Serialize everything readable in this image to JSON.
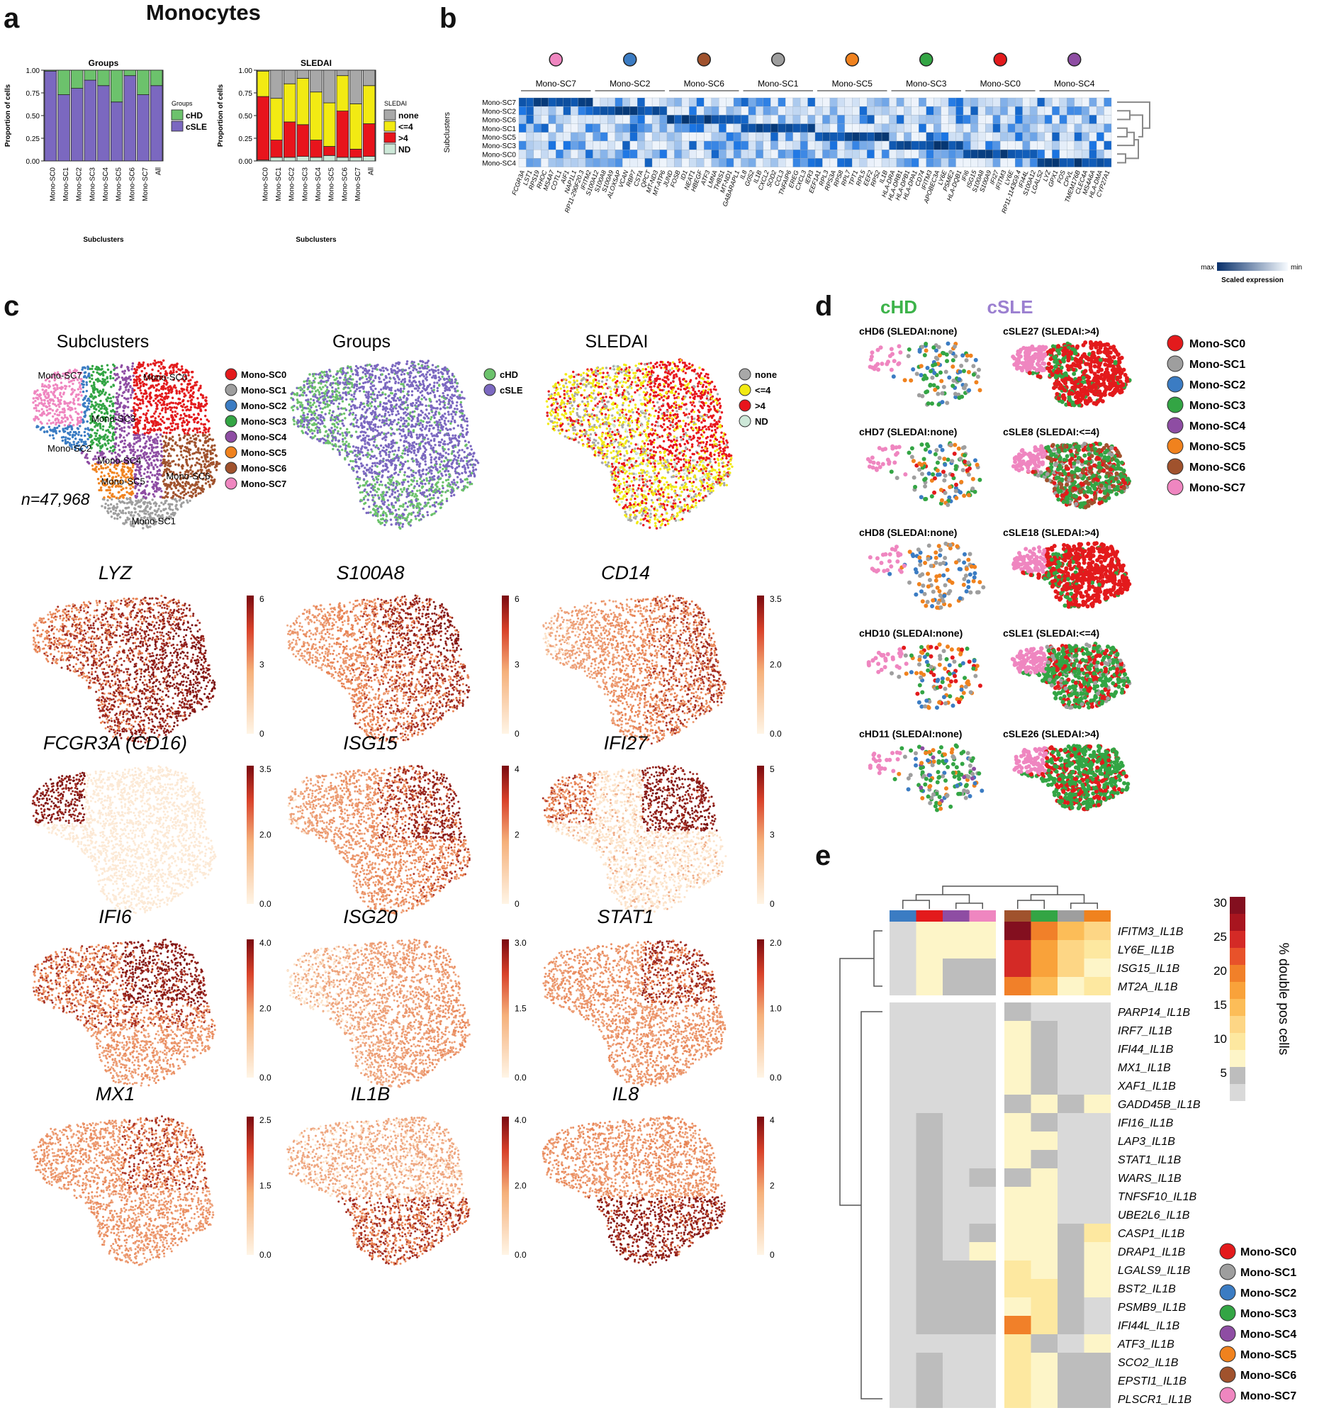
{
  "figure_title": "Monocytes",
  "panels": {
    "a": "a",
    "b": "b",
    "c": "c",
    "d": "d",
    "e": "e"
  },
  "colors": {
    "SC0": "#e31a1c",
    "SC1": "#9e9e9e",
    "SC2": "#3b7cc3",
    "SC3": "#33a544",
    "SC4": "#8e4da3",
    "SC5": "#f0821e",
    "SC6": "#a0522d",
    "SC7": "#ef86c0",
    "cHD": "#6cc26c",
    "cSLE": "#7b68c0",
    "none": "#a8a8a8",
    "le4": "#f2ea13",
    "gt4": "#e8141c",
    "ND": "#cde8d8"
  },
  "chart_data": [
    {
      "type": "bar",
      "id": "groups",
      "title": "Groups",
      "xlabel": "Subclusters",
      "ylabel": "Proportion of cells",
      "ylim": [
        0,
        1
      ],
      "yticks": [
        "0.00",
        "0.25",
        "0.50",
        "0.75",
        "1.00"
      ],
      "categories": [
        "Mono-SC0",
        "Mono-SC1",
        "Mono-SC2",
        "Mono-SC3",
        "Mono-SC4",
        "Mono-SC5",
        "Mono-SC6",
        "Mono-SC7",
        "All"
      ],
      "legend_title": "Groups",
      "series": [
        {
          "name": "cSLE",
          "values": [
            0.99,
            0.73,
            0.8,
            0.89,
            0.83,
            0.65,
            0.94,
            0.73,
            0.83
          ]
        },
        {
          "name": "cHD",
          "values": [
            0.01,
            0.27,
            0.2,
            0.11,
            0.17,
            0.35,
            0.06,
            0.27,
            0.17
          ]
        }
      ]
    },
    {
      "type": "bar",
      "id": "sledai",
      "title": "SLEDAI",
      "xlabel": "Subclusters",
      "ylabel": "Proportion of cells",
      "ylim": [
        0,
        1
      ],
      "yticks": [
        "0.00",
        "0.25",
        "0.50",
        "0.75",
        "1.00"
      ],
      "categories": [
        "Mono-SC0",
        "Mono-SC1",
        "Mono-SC2",
        "Mono-SC3",
        "Mono-SC4",
        "Mono-SC5",
        "Mono-SC6",
        "Mono-SC7",
        "All"
      ],
      "legend_title": "SLEDAI",
      "series": [
        {
          "name": "ND",
          "values": [
            0.01,
            0.04,
            0.04,
            0.05,
            0.04,
            0.06,
            0.04,
            0.04,
            0.05
          ]
        },
        {
          "name": ">4",
          "values": [
            0.7,
            0.19,
            0.39,
            0.35,
            0.19,
            0.1,
            0.51,
            0.09,
            0.36
          ]
        },
        {
          "name": "<=4",
          "values": [
            0.28,
            0.46,
            0.42,
            0.51,
            0.53,
            0.48,
            0.39,
            0.5,
            0.42
          ]
        },
        {
          "name": "none",
          "values": [
            0.01,
            0.31,
            0.15,
            0.09,
            0.24,
            0.36,
            0.06,
            0.37,
            0.17
          ]
        }
      ]
    },
    {
      "type": "heatmap",
      "id": "marker-heatmap",
      "row_axis_label": "Subclusters",
      "rows": [
        "Mono-SC7",
        "Mono-SC2",
        "Mono-SC6",
        "Mono-SC1",
        "Mono-SC5",
        "Mono-SC3",
        "Mono-SC0",
        "Mono-SC4"
      ],
      "column_groups": [
        {
          "name": "Mono-SC7",
          "color_key": "SC7",
          "genes": [
            "FCGR3A",
            "LST1",
            "RPS19",
            "RHOC",
            "MS4A7",
            "COTL1",
            "AIF1",
            "NAP1L1",
            "RP11-290F20.3",
            "IFITM2"
          ]
        },
        {
          "name": "Mono-SC2",
          "color_key": "SC2",
          "genes": [
            "S100A12",
            "S100A8",
            "S100A9",
            "ALOX5AP",
            "VCAN",
            "RBP7",
            "CSTA",
            "QPCT",
            "MT-ND3",
            "MT-ATP6"
          ]
        },
        {
          "name": "Mono-SC6",
          "color_key": "SC6",
          "genes": [
            "JUND",
            "FOSB",
            "ID1",
            "NEAT1",
            "HBEGF",
            "ATF3",
            "LMNA",
            "THBS1",
            "MT-ND1",
            "GABARAPL1"
          ]
        },
        {
          "name": "Mono-SC1",
          "color_key": "SC1",
          "genes": [
            "IL8",
            "G0S2",
            "IL1B",
            "CXCL2",
            "SOD2",
            "CCL3",
            "TNFAIP6",
            "EREG",
            "CXCL3",
            "IER3"
          ]
        },
        {
          "name": "Mono-SC5",
          "color_key": "SC5",
          "genes": [
            "EEF1A1",
            "RPL3",
            "RPS3A",
            "RPS8",
            "RPL7",
            "TPT1",
            "RPL5",
            "EEF2",
            "RPS2",
            "IL1B"
          ]
        },
        {
          "name": "Mono-SC3",
          "color_key": "SC3",
          "genes": [
            "HLA-DRA",
            "HLA-DRB1",
            "HLA-DPB1",
            "HLA-DPA1",
            "CD74",
            "IFITM3",
            "APOBEC3A",
            "LY6E",
            "PSME2",
            "HLA-DQB1"
          ]
        },
        {
          "name": "Mono-SC0",
          "color_key": "SC0",
          "genes": [
            "IFI6",
            "ISG15",
            "S100A8",
            "S100A9",
            "IFI27",
            "IFITM3",
            "LY6E",
            "RP11-1143G9.4",
            "IFI44L",
            "S100A12"
          ]
        },
        {
          "name": "Mono-SC4",
          "color_key": "SC4",
          "genes": [
            "LGALS2",
            "LYZ",
            "GPX1",
            "FOS",
            "CPVL",
            "TMEM176B",
            "CLEC4A",
            "MS4A6A",
            "HLA-DMA",
            "CYP27A1"
          ]
        }
      ],
      "scale_max": "max",
      "scale_min": "min",
      "scale_title": "Scaled expression"
    },
    {
      "type": "heatmap",
      "id": "double-pos-heatmap",
      "columns_left": [
        "SC2",
        "SC0",
        "SC4",
        "SC7"
      ],
      "columns_right": [
        "SC6",
        "SC3",
        "SC1",
        "SC5"
      ],
      "rows_top": [
        "IFITM3_IL1B",
        "LY6E_IL1B",
        "ISG15_IL1B",
        "MT2A_IL1B"
      ],
      "rows_bottom": [
        "PARP14_IL1B",
        "IRF7_IL1B",
        "IFI44_IL1B",
        "MX1_IL1B",
        "XAF1_IL1B",
        "GADD45B_IL1B",
        "IFI16_IL1B",
        "LAP3_IL1B",
        "STAT1_IL1B",
        "WARS_IL1B",
        "TNFSF10_IL1B",
        "UBE2L6_IL1B",
        "CASP1_IL1B",
        "DRAP1_IL1B",
        "LGALS9_IL1B",
        "BST2_IL1B",
        "PSMB9_IL1B",
        "IFI44L_IL1B",
        "ATF3_IL1B",
        "SCO2_IL1B",
        "EPSTI1_IL1B",
        "PLSCR1_IL1B"
      ],
      "values_percent": [
        [
          3,
          8,
          8,
          8,
          30,
          20,
          15,
          12
        ],
        [
          3,
          8,
          8,
          8,
          26,
          18,
          12,
          10
        ],
        [
          3,
          8,
          4,
          4,
          26,
          16,
          11,
          8
        ],
        [
          3,
          8,
          4,
          4,
          20,
          14,
          8,
          9
        ],
        [
          3,
          3,
          3,
          3,
          5,
          3,
          3,
          3
        ],
        [
          3,
          3,
          3,
          3,
          8,
          5,
          3,
          3
        ],
        [
          3,
          3,
          3,
          3,
          8,
          5,
          3,
          3
        ],
        [
          3,
          3,
          3,
          3,
          8,
          5,
          3,
          3
        ],
        [
          3,
          3,
          3,
          3,
          8,
          5,
          3,
          3
        ],
        [
          3,
          3,
          3,
          3,
          5,
          8,
          5,
          8
        ],
        [
          3,
          5,
          3,
          3,
          8,
          5,
          3,
          3
        ],
        [
          3,
          5,
          3,
          3,
          8,
          8,
          3,
          3
        ],
        [
          3,
          5,
          3,
          3,
          8,
          5,
          3,
          3
        ],
        [
          3,
          5,
          3,
          5,
          5,
          8,
          3,
          3
        ],
        [
          3,
          5,
          3,
          3,
          8,
          8,
          3,
          3
        ],
        [
          3,
          5,
          3,
          3,
          8,
          8,
          3,
          3
        ],
        [
          3,
          5,
          3,
          5,
          8,
          8,
          5,
          10
        ],
        [
          3,
          5,
          3,
          8,
          8,
          8,
          5,
          8
        ],
        [
          3,
          5,
          5,
          5,
          10,
          8,
          5,
          8
        ],
        [
          3,
          5,
          5,
          5,
          10,
          10,
          5,
          8
        ],
        [
          3,
          5,
          5,
          5,
          8,
          10,
          5,
          3
        ],
        [
          3,
          5,
          5,
          5,
          20,
          10,
          5,
          3
        ],
        [
          3,
          3,
          3,
          3,
          10,
          5,
          3,
          8
        ],
        [
          3,
          5,
          3,
          3,
          10,
          8,
          5,
          5
        ],
        [
          3,
          5,
          3,
          3,
          10,
          8,
          4,
          4
        ],
        [
          3,
          5,
          3,
          3,
          10,
          8,
          5,
          5
        ]
      ],
      "scale_ticks": [
        "30",
        "25",
        "20",
        "15",
        "10",
        "5"
      ],
      "scale_title": "% double pos cells",
      "legend": [
        "Mono-SC0",
        "Mono-SC1",
        "Mono-SC2",
        "Mono-SC3",
        "Mono-SC4",
        "Mono-SC5",
        "Mono-SC6",
        "Mono-SC7"
      ]
    }
  ],
  "umap_panels": [
    {
      "title": "Subclusters",
      "mode": "clusters",
      "n_label": "n=47,968",
      "cluster_labels": [
        "Mono-SC7",
        "Mono-SC0",
        "Mono-SC3",
        "Mono-SC2",
        "Mono-SC4",
        "Mono-SC6",
        "Mono-SC5",
        "Mono-SC1"
      ],
      "legend": [
        "Mono-SC0",
        "Mono-SC1",
        "Mono-SC2",
        "Mono-SC3",
        "Mono-SC4",
        "Mono-SC5",
        "Mono-SC6",
        "Mono-SC7"
      ]
    },
    {
      "title": "Groups",
      "mode": "groups",
      "legend": [
        "cHD",
        "cSLE"
      ]
    },
    {
      "title": "SLEDAI",
      "mode": "sledai",
      "legend": [
        "none",
        "<=4",
        ">4",
        "ND"
      ]
    }
  ],
  "feature_plots": [
    {
      "gene": "LYZ",
      "ticks": [
        "6",
        "3",
        "0"
      ]
    },
    {
      "gene": "S100A8",
      "ticks": [
        "6",
        "3",
        "0"
      ]
    },
    {
      "gene": "CD14",
      "ticks": [
        "3.5",
        "2.0",
        "0.0"
      ]
    },
    {
      "gene": "FCGR3A (CD16)",
      "ticks": [
        "3.5",
        "2.0",
        "0.0"
      ]
    },
    {
      "gene": "ISG15",
      "ticks": [
        "4",
        "2",
        "0"
      ]
    },
    {
      "gene": "IFI27",
      "ticks": [
        "5",
        "3",
        "0"
      ]
    },
    {
      "gene": "IFI6",
      "ticks": [
        "4.0",
        "2.0",
        "0.0"
      ]
    },
    {
      "gene": "ISG20",
      "ticks": [
        "3.0",
        "1.5",
        "0.0"
      ]
    },
    {
      "gene": "STAT1",
      "ticks": [
        "2.0",
        "1.0",
        "0.0"
      ]
    },
    {
      "gene": "MX1",
      "ticks": [
        "2.5",
        "1.5",
        "0.0"
      ]
    },
    {
      "gene": "IL1B",
      "ticks": [
        "4.0",
        "2.0",
        "0.0"
      ]
    },
    {
      "gene": "IL8",
      "ticks": [
        "4",
        "2",
        "0"
      ]
    }
  ],
  "panel_d": {
    "header_left": "cHD",
    "header_right": "cSLE",
    "left": [
      "cHD6 (SLEDAI:none)",
      "cHD7 (SLEDAI:none)",
      "cHD8 (SLEDAI:none)",
      "cHD10 (SLEDAI:none)",
      "cHD11 (SLEDAI:none)"
    ],
    "right": [
      "cSLE27 (SLEDAI:>4)",
      "cSLE8 (SLEDAI:<=4)",
      "cSLE18 (SLEDAI:>4)",
      "cSLE1 (SLEDAI:<=4)",
      "cSLE26 (SLEDAI:>4)"
    ],
    "legend": [
      "Mono-SC0",
      "Mono-SC1",
      "Mono-SC2",
      "Mono-SC3",
      "Mono-SC4",
      "Mono-SC5",
      "Mono-SC6",
      "Mono-SC7"
    ]
  }
}
